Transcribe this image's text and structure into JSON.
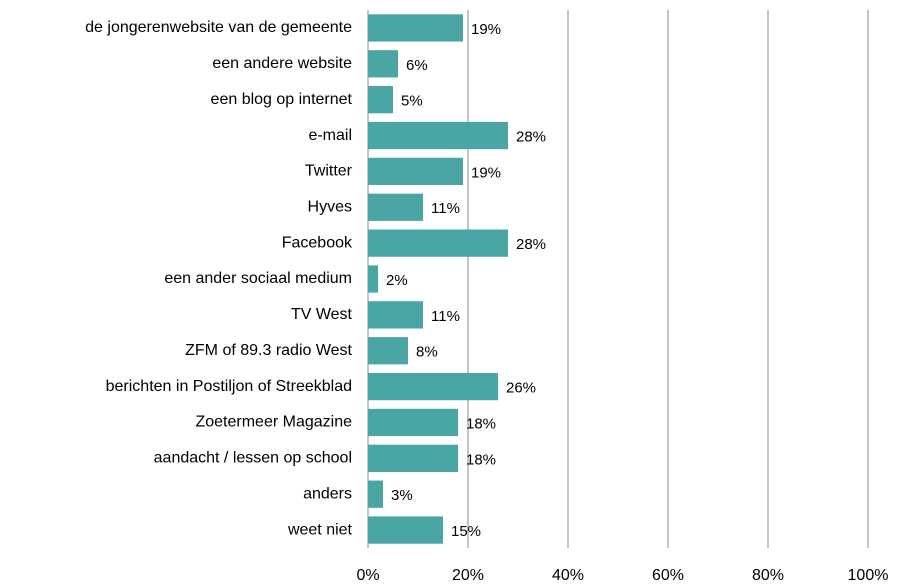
{
  "chart_data": {
    "type": "barh",
    "categories": [
      "de jongerenwebsite van de gemeente",
      "een andere website",
      "een blog op internet",
      "e-mail",
      "Twitter",
      "Hyves",
      "Facebook",
      "een ander sociaal medium",
      "TV West",
      "ZFM of 89.3 radio West",
      "berichten in Postiljon of Streekblad",
      "Zoetermeer Magazine",
      "aandacht / lessen op school",
      "anders",
      "weet niet"
    ],
    "values": [
      19,
      6,
      5,
      28,
      19,
      11,
      28,
      2,
      11,
      8,
      26,
      18,
      18,
      3,
      15
    ],
    "value_labels": [
      "19%",
      "6%",
      "5%",
      "28%",
      "19%",
      "11%",
      "28%",
      "2%",
      "11%",
      "8%",
      "26%",
      "18%",
      "18%",
      "3%",
      "15%"
    ],
    "color": "#4aa5a5",
    "xlim": [
      0,
      100
    ],
    "xticks": [
      {
        "value": 0,
        "label": "0%"
      },
      {
        "value": 20,
        "label": "20%"
      },
      {
        "value": 40,
        "label": "40%"
      },
      {
        "value": 60,
        "label": "60%"
      },
      {
        "value": 80,
        "label": "80%"
      },
      {
        "value": 100,
        "label": "100%"
      }
    ],
    "grid": true
  }
}
